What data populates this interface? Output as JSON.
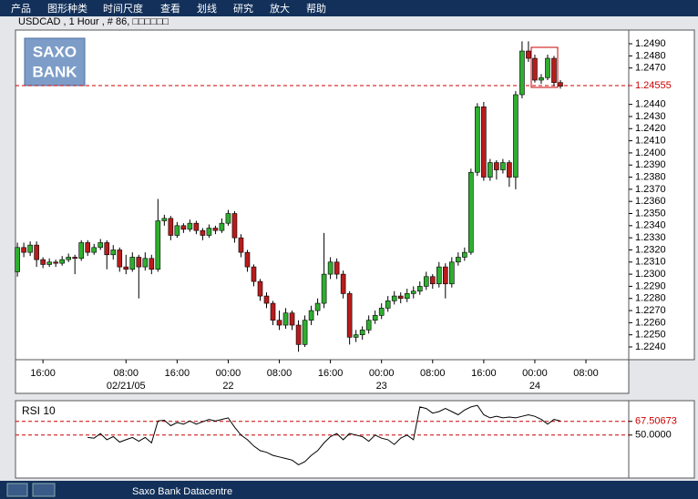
{
  "menu": [
    "产品",
    "图形种类",
    "时间尺度",
    "查看",
    "划线",
    "研究",
    "放大",
    "帮助"
  ],
  "logo": [
    "SAXO",
    "BANK"
  ],
  "status_bar": "Saxo Bank Datacentre",
  "chart_data": [
    {
      "type": "candlestick",
      "title": "USDCAD , 1 Hour , # 86, □□□□□□",
      "up_color": "#2fae2f",
      "down_color": "#b81c1c",
      "candles": [
        [
          1.2302,
          1.2326,
          1.2298,
          1.2322
        ],
        [
          1.2322,
          1.2326,
          1.2314,
          1.2318
        ],
        [
          1.2318,
          1.2327,
          1.2315,
          1.2324
        ],
        [
          1.2324,
          1.2327,
          1.2306,
          1.2312
        ],
        [
          1.2312,
          1.2314,
          1.2305,
          1.2308
        ],
        [
          1.2308,
          1.2313,
          1.2306,
          1.231
        ],
        [
          1.231,
          1.2312,
          1.2306,
          1.2309
        ],
        [
          1.2309,
          1.2315,
          1.2307,
          1.2312
        ],
        [
          1.2312,
          1.2317,
          1.231,
          1.2314
        ],
        [
          1.2314,
          1.2316,
          1.23,
          1.2313
        ],
        [
          1.2313,
          1.2328,
          1.2311,
          1.2326
        ],
        [
          1.2326,
          1.2328,
          1.2315,
          1.2318
        ],
        [
          1.2318,
          1.2325,
          1.2316,
          1.2322
        ],
        [
          1.2322,
          1.2329,
          1.232,
          1.2326
        ],
        [
          1.2326,
          1.2328,
          1.2304,
          1.2316
        ],
        [
          1.2316,
          1.2324,
          1.2312,
          1.232
        ],
        [
          1.232,
          1.2322,
          1.2302,
          1.2306
        ],
        [
          1.2306,
          1.2316,
          1.23,
          1.2304
        ],
        [
          1.2304,
          1.2318,
          1.2302,
          1.2314
        ],
        [
          1.2314,
          1.2316,
          1.228,
          1.2306
        ],
        [
          1.2306,
          1.2318,
          1.2303,
          1.2313
        ],
        [
          1.2313,
          1.2316,
          1.23,
          1.2304
        ],
        [
          1.2304,
          1.2362,
          1.2302,
          1.2344
        ],
        [
          1.2344,
          1.2349,
          1.234,
          1.2346
        ],
        [
          1.2346,
          1.2348,
          1.2328,
          1.2332
        ],
        [
          1.2332,
          1.2343,
          1.233,
          1.234
        ],
        [
          1.234,
          1.2342,
          1.2334,
          1.2337
        ],
        [
          1.2337,
          1.2345,
          1.2335,
          1.2342
        ],
        [
          1.2342,
          1.2344,
          1.2333,
          1.2336
        ],
        [
          1.2336,
          1.2338,
          1.2328,
          1.2332
        ],
        [
          1.2332,
          1.2341,
          1.233,
          1.2338
        ],
        [
          1.2338,
          1.234,
          1.2333,
          1.2336
        ],
        [
          1.2336,
          1.2346,
          1.2334,
          1.2342
        ],
        [
          1.2342,
          1.2353,
          1.234,
          1.235
        ],
        [
          1.235,
          1.2352,
          1.2326,
          1.233
        ],
        [
          1.233,
          1.2333,
          1.2314,
          1.2318
        ],
        [
          1.2318,
          1.232,
          1.2302,
          1.2306
        ],
        [
          1.2306,
          1.2308,
          1.229,
          1.2294
        ],
        [
          1.2294,
          1.2296,
          1.2278,
          1.2282
        ],
        [
          1.2282,
          1.2285,
          1.2272,
          1.2276
        ],
        [
          1.2276,
          1.2278,
          1.2258,
          1.2262
        ],
        [
          1.2262,
          1.227,
          1.2254,
          1.2258
        ],
        [
          1.2258,
          1.2272,
          1.2255,
          1.2268
        ],
        [
          1.2268,
          1.227,
          1.2254,
          1.2258
        ],
        [
          1.2258,
          1.2262,
          1.2236,
          1.2242
        ],
        [
          1.2242,
          1.2266,
          1.224,
          1.2262
        ],
        [
          1.2262,
          1.2274,
          1.2258,
          1.227
        ],
        [
          1.227,
          1.228,
          1.2266,
          1.2276
        ],
        [
          1.2276,
          1.2334,
          1.2272,
          1.23
        ],
        [
          1.23,
          1.2314,
          1.2296,
          1.231
        ],
        [
          1.231,
          1.2313,
          1.2296,
          1.23
        ],
        [
          1.23,
          1.2303,
          1.228,
          1.2284
        ],
        [
          1.2284,
          1.2286,
          1.2242,
          1.2248
        ],
        [
          1.2248,
          1.2254,
          1.2244,
          1.225
        ],
        [
          1.225,
          1.2257,
          1.2246,
          1.2254
        ],
        [
          1.2254,
          1.2266,
          1.2251,
          1.2262
        ],
        [
          1.2262,
          1.227,
          1.2259,
          1.2266
        ],
        [
          1.2266,
          1.2276,
          1.2263,
          1.2272
        ],
        [
          1.2272,
          1.2282,
          1.2269,
          1.2278
        ],
        [
          1.2278,
          1.2286,
          1.2275,
          1.2282
        ],
        [
          1.2282,
          1.2285,
          1.2276,
          1.228
        ],
        [
          1.228,
          1.2288,
          1.2277,
          1.2284
        ],
        [
          1.2284,
          1.229,
          1.228,
          1.2286
        ],
        [
          1.2286,
          1.2294,
          1.2283,
          1.229
        ],
        [
          1.229,
          1.2302,
          1.2287,
          1.2298
        ],
        [
          1.2298,
          1.23,
          1.2288,
          1.2292
        ],
        [
          1.2292,
          1.231,
          1.2289,
          1.2306
        ],
        [
          1.2306,
          1.2309,
          1.228,
          1.2292
        ],
        [
          1.2292,
          1.2314,
          1.2289,
          1.231
        ],
        [
          1.231,
          1.2318,
          1.2307,
          1.2314
        ],
        [
          1.2314,
          1.2322,
          1.2311,
          1.2318
        ],
        [
          1.2318,
          1.2387,
          1.2316,
          1.2384
        ],
        [
          1.2384,
          1.2441,
          1.2381,
          1.2438
        ],
        [
          1.2438,
          1.2442,
          1.2377,
          1.238
        ],
        [
          1.238,
          1.2395,
          1.2377,
          1.2392
        ],
        [
          1.2392,
          1.2394,
          1.2378,
          1.2386
        ],
        [
          1.2386,
          1.2395,
          1.2383,
          1.2392
        ],
        [
          1.2392,
          1.2394,
          1.2372,
          1.238
        ],
        [
          1.238,
          1.2451,
          1.237,
          1.2448
        ],
        [
          1.2448,
          1.2492,
          1.2445,
          1.2484
        ],
        [
          1.2484,
          1.2492,
          1.2475,
          1.2478
        ],
        [
          1.2478,
          1.2481,
          1.2458,
          1.246
        ],
        [
          1.246,
          1.2465,
          1.2457,
          1.2462
        ],
        [
          1.2462,
          1.2481,
          1.246,
          1.2478
        ],
        [
          1.2478,
          1.248,
          1.2455,
          1.2458
        ],
        [
          1.2458,
          1.246,
          1.2453,
          1.2455
        ]
      ],
      "xlim": [
        -0.3,
        95.7
      ],
      "xticks": [
        {
          "value": 4,
          "label": "16:00"
        },
        {
          "value": 17,
          "label": "08:00"
        },
        {
          "value": 25,
          "label": "16:00"
        },
        {
          "value": 33,
          "label": "00:00"
        },
        {
          "value": 41,
          "label": "08:00"
        },
        {
          "value": 49,
          "label": "16:00"
        },
        {
          "value": 57,
          "label": "00:00"
        },
        {
          "value": 65,
          "label": "08:00"
        },
        {
          "value": 73,
          "label": "16:00"
        },
        {
          "value": 81,
          "label": "00:00"
        },
        {
          "value": 89,
          "label": "08:00"
        }
      ],
      "xdates": [
        {
          "value": 17,
          "label": "02/21/05"
        },
        {
          "value": 33,
          "label": "22"
        },
        {
          "value": 57,
          "label": "23"
        },
        {
          "value": 81,
          "label": "24"
        }
      ],
      "ylim": [
        1.22295,
        1.25013
      ],
      "yticks": [
        {
          "value": 1.224,
          "label": "1.2240"
        },
        {
          "value": 1.225,
          "label": "1.2250"
        },
        {
          "value": 1.226,
          "label": "1.2260"
        },
        {
          "value": 1.227,
          "label": "1.2270"
        },
        {
          "value": 1.228,
          "label": "1.2280"
        },
        {
          "value": 1.229,
          "label": "1.2290"
        },
        {
          "value": 1.23,
          "label": "1.2300"
        },
        {
          "value": 1.231,
          "label": "1.2310"
        },
        {
          "value": 1.232,
          "label": "1.2320"
        },
        {
          "value": 1.233,
          "label": "1.2330"
        },
        {
          "value": 1.234,
          "label": "1.2340"
        },
        {
          "value": 1.235,
          "label": "1.2350"
        },
        {
          "value": 1.236,
          "label": "1.2360"
        },
        {
          "value": 1.237,
          "label": "1.2370"
        },
        {
          "value": 1.238,
          "label": "1.2380"
        },
        {
          "value": 1.239,
          "label": "1.2390"
        },
        {
          "value": 1.24,
          "label": "1.2400"
        },
        {
          "value": 1.241,
          "label": "1.2410"
        },
        {
          "value": 1.242,
          "label": "1.2420"
        },
        {
          "value": 1.243,
          "label": "1.2430"
        },
        {
          "value": 1.244,
          "label": "1.2440"
        },
        {
          "value": 1.247,
          "label": "1.2470"
        },
        {
          "value": 1.248,
          "label": "1.2480"
        },
        {
          "value": 1.249,
          "label": "1.2490"
        }
      ],
      "hline": 1.24555,
      "hline_color": "#cc0000"
    },
    {
      "type": "line",
      "title": "RSI 10",
      "color": "#000000",
      "values": [
        null,
        null,
        null,
        null,
        null,
        null,
        null,
        null,
        null,
        null,
        null,
        47,
        46,
        52,
        44,
        48,
        41,
        44,
        47,
        42,
        47,
        40,
        68,
        69,
        62,
        66,
        64,
        68,
        64,
        67,
        70,
        68,
        70,
        72,
        60,
        50,
        44,
        36,
        30,
        28,
        24,
        22,
        20,
        18,
        12,
        16,
        24,
        30,
        40,
        48,
        52,
        44,
        52,
        50,
        48,
        42,
        50,
        46,
        44,
        38,
        46,
        50,
        44,
        86,
        84,
        78,
        80,
        84,
        80,
        76,
        82,
        86,
        88,
        76,
        72,
        74,
        72,
        73,
        72,
        74,
        76,
        74,
        70,
        64,
        70,
        68
      ],
      "xlim": [
        -0.3,
        95.7
      ],
      "ylim": [
        -5,
        94
      ],
      "yticks": [
        67.50673,
        {
          "value": 50,
          "label": "50.0000"
        }
      ],
      "tick_label_colors": [
        "#cc0000",
        "#000000"
      ],
      "level_color": "#cc0000"
    }
  ]
}
